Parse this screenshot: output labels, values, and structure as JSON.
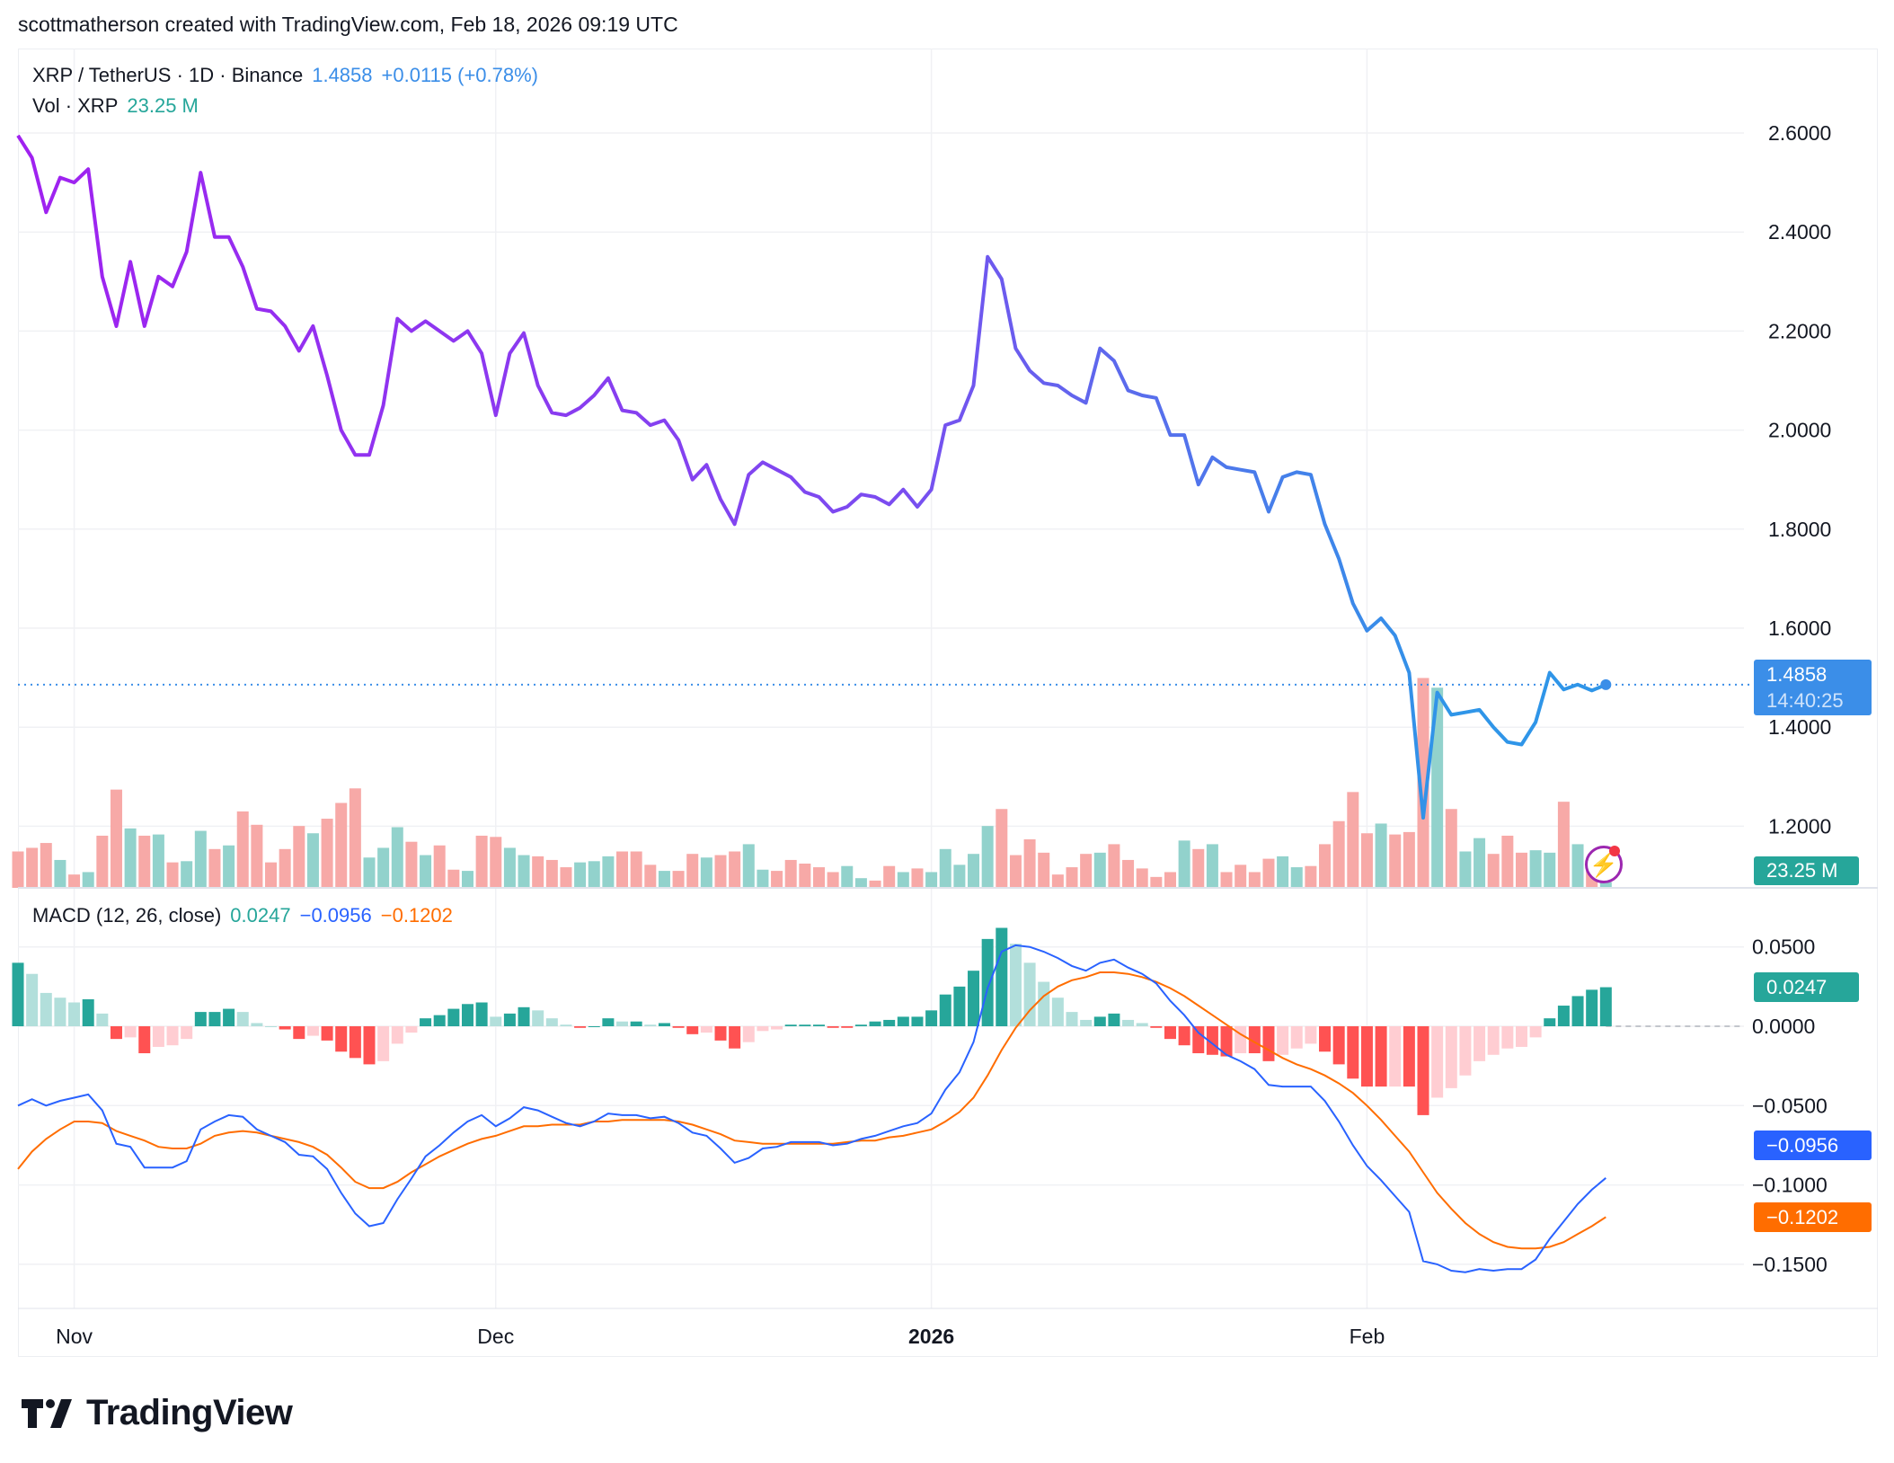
{
  "credit": "scottmatherson created with TradingView.com, Feb 18, 2026 09:19 UTC",
  "legend": {
    "symbol": "XRP / TetherUS · 1D · Binance",
    "price": "1.4858",
    "change": "+0.0115 (+0.78%)",
    "vol_label": "Vol · XRP",
    "vol_value": "23.25 M",
    "macd_label": "MACD (12, 26, close)",
    "macd_hist": "0.0247",
    "macd_line": "−0.0956",
    "macd_signal": "−0.1202"
  },
  "labels": {
    "price": "1.4858",
    "countdown": "14:40:25",
    "volume": "23.25 M",
    "hist": "0.0247",
    "macd": "−0.0956",
    "signal": "−0.1202"
  },
  "brand": "TradingView",
  "colors": {
    "line_start": "#a021f0",
    "line_end": "#2f95e8",
    "price_label": "#3b8ee8",
    "up": "#26a69a",
    "down": "#f23645",
    "vol_up": "#92d2cc",
    "vol_down": "#f7a9a7",
    "macd": "#2962ff",
    "signal": "#ff6d00",
    "hist_up_strong": "#26a69a",
    "hist_up_weak": "#b2dfdb",
    "hist_down_strong": "#ff5252",
    "hist_down_weak": "#ffcdd2"
  },
  "chart_data": [
    {
      "type": "line",
      "title": "XRP / TetherUS · 1D · Binance",
      "x_range": [
        "2025-10-28",
        "2026-02-18"
      ],
      "x_ticks": [
        "Nov",
        "Dec",
        "2026",
        "Feb"
      ],
      "y_ticks": [
        "2.6000",
        "2.4000",
        "2.2000",
        "2.0000",
        "1.8000",
        "1.6000",
        "1.4000",
        "1.2000"
      ],
      "ylim": [
        1.2,
        2.6
      ],
      "grid": true,
      "close": [
        2.595,
        2.55,
        2.44,
        2.51,
        2.5,
        2.527,
        2.31,
        2.21,
        2.34,
        2.21,
        2.31,
        2.29,
        2.36,
        2.52,
        2.39,
        2.39,
        2.33,
        2.245,
        2.24,
        2.21,
        2.16,
        2.21,
        2.11,
        2.0,
        1.95,
        1.95,
        2.05,
        2.225,
        2.2,
        2.22,
        2.2,
        2.18,
        2.2,
        2.155,
        2.03,
        2.155,
        2.196,
        2.09,
        2.035,
        2.03,
        2.045,
        2.07,
        2.105,
        2.04,
        2.035,
        2.01,
        2.02,
        1.98,
        1.9,
        1.93,
        1.86,
        1.81,
        1.91,
        1.935,
        1.92,
        1.905,
        1.875,
        1.865,
        1.835,
        1.845,
        1.87,
        1.865,
        1.85,
        1.88,
        1.845,
        1.88,
        2.01,
        2.02,
        2.09,
        2.35,
        2.305,
        2.165,
        2.12,
        2.095,
        2.09,
        2.07,
        2.055,
        2.165,
        2.14,
        2.08,
        2.07,
        2.065,
        1.99,
        1.99,
        1.89,
        1.945,
        1.925,
        1.92,
        1.915,
        1.835,
        1.905,
        1.915,
        1.91,
        1.81,
        1.74,
        1.65,
        1.595,
        1.62,
        1.585,
        1.51,
        1.217,
        1.47,
        1.425,
        1.43,
        1.435,
        1.4,
        1.37,
        1.365,
        1.41,
        1.51,
        1.476,
        1.486,
        1.474,
        1.4858
      ]
    },
    {
      "type": "bar",
      "name": "Vol · XRP",
      "unit": "M",
      "values": [
        150,
        165,
        185,
        115,
        55,
        65,
        215,
        405,
        245,
        215,
        220,
        105,
        110,
        235,
        160,
        175,
        315,
        260,
        105,
        160,
        255,
        225,
        285,
        350,
        410,
        125,
        165,
        250,
        190,
        135,
        175,
        75,
        70,
        215,
        210,
        165,
        135,
        130,
        115,
        85,
        105,
        110,
        130,
        150,
        150,
        95,
        70,
        70,
        140,
        125,
        135,
        150,
        180,
        75,
        70,
        115,
        100,
        85,
        65,
        90,
        40,
        30,
        90,
        65,
        80,
        65,
        160,
        95,
        140,
        255,
        325,
        135,
        200,
        145,
        55,
        85,
        140,
        145,
        180,
        115,
        80,
        45,
        65,
        195,
        160,
        180,
        65,
        95,
        65,
        120,
        130,
        85,
        90,
        180,
        275,
        395,
        225,
        265,
        220,
        230,
        865,
        825,
        325,
        150,
        205,
        140,
        215,
        145,
        155,
        145,
        355,
        180,
        75,
        23.25
      ]
    },
    {
      "type": "line",
      "name": "MACD (12, 26, close)",
      "y_ticks": [
        "0.0500",
        "0.0000",
        "−0.0500",
        "−0.1000",
        "−0.1500"
      ],
      "ylim": [
        -0.17,
        0.07
      ],
      "macd": [
        -0.05,
        -0.046,
        -0.05,
        -0.047,
        -0.045,
        -0.043,
        -0.053,
        -0.074,
        -0.076,
        -0.089,
        -0.089,
        -0.089,
        -0.085,
        -0.065,
        -0.06,
        -0.056,
        -0.057,
        -0.065,
        -0.069,
        -0.073,
        -0.081,
        -0.082,
        -0.09,
        -0.105,
        -0.118,
        -0.126,
        -0.124,
        -0.109,
        -0.096,
        -0.082,
        -0.075,
        -0.067,
        -0.06,
        -0.056,
        -0.063,
        -0.058,
        -0.051,
        -0.053,
        -0.057,
        -0.061,
        -0.063,
        -0.06,
        -0.055,
        -0.056,
        -0.056,
        -0.058,
        -0.057,
        -0.061,
        -0.067,
        -0.069,
        -0.077,
        -0.086,
        -0.083,
        -0.077,
        -0.076,
        -0.073,
        -0.073,
        -0.073,
        -0.075,
        -0.074,
        -0.071,
        -0.069,
        -0.066,
        -0.063,
        -0.061,
        -0.055,
        -0.04,
        -0.029,
        -0.01,
        0.024,
        0.047,
        0.051,
        0.05,
        0.047,
        0.043,
        0.038,
        0.035,
        0.04,
        0.042,
        0.037,
        0.033,
        0.027,
        0.016,
        0.007,
        -0.004,
        -0.011,
        -0.018,
        -0.022,
        -0.027,
        -0.037,
        -0.038,
        -0.038,
        -0.038,
        -0.047,
        -0.06,
        -0.075,
        -0.088,
        -0.097,
        -0.107,
        -0.117,
        -0.148,
        -0.15,
        -0.154,
        -0.155,
        -0.153,
        -0.154,
        -0.153,
        -0.153,
        -0.147,
        -0.134,
        -0.123,
        -0.112,
        -0.103,
        -0.0956
      ],
      "signal": [
        -0.09,
        -0.079,
        -0.071,
        -0.065,
        -0.06,
        -0.06,
        -0.061,
        -0.066,
        -0.069,
        -0.072,
        -0.076,
        -0.077,
        -0.077,
        -0.074,
        -0.069,
        -0.067,
        -0.066,
        -0.067,
        -0.069,
        -0.071,
        -0.073,
        -0.076,
        -0.081,
        -0.089,
        -0.098,
        -0.102,
        -0.102,
        -0.098,
        -0.092,
        -0.087,
        -0.082,
        -0.078,
        -0.074,
        -0.071,
        -0.069,
        -0.066,
        -0.063,
        -0.063,
        -0.062,
        -0.062,
        -0.062,
        -0.06,
        -0.06,
        -0.059,
        -0.059,
        -0.059,
        -0.059,
        -0.06,
        -0.062,
        -0.065,
        -0.068,
        -0.072,
        -0.073,
        -0.074,
        -0.074,
        -0.074,
        -0.074,
        -0.074,
        -0.074,
        -0.073,
        -0.072,
        -0.072,
        -0.07,
        -0.069,
        -0.067,
        -0.065,
        -0.06,
        -0.054,
        -0.045,
        -0.031,
        -0.015,
        -0.001,
        0.01,
        0.019,
        0.025,
        0.029,
        0.031,
        0.034,
        0.034,
        0.033,
        0.031,
        0.028,
        0.024,
        0.019,
        0.013,
        0.007,
        0.001,
        -0.005,
        -0.01,
        -0.015,
        -0.02,
        -0.024,
        -0.027,
        -0.031,
        -0.036,
        -0.042,
        -0.05,
        -0.059,
        -0.069,
        -0.079,
        -0.092,
        -0.105,
        -0.115,
        -0.124,
        -0.131,
        -0.136,
        -0.139,
        -0.14,
        -0.14,
        -0.139,
        -0.136,
        -0.131,
        -0.126,
        -0.1202
      ]
    }
  ]
}
